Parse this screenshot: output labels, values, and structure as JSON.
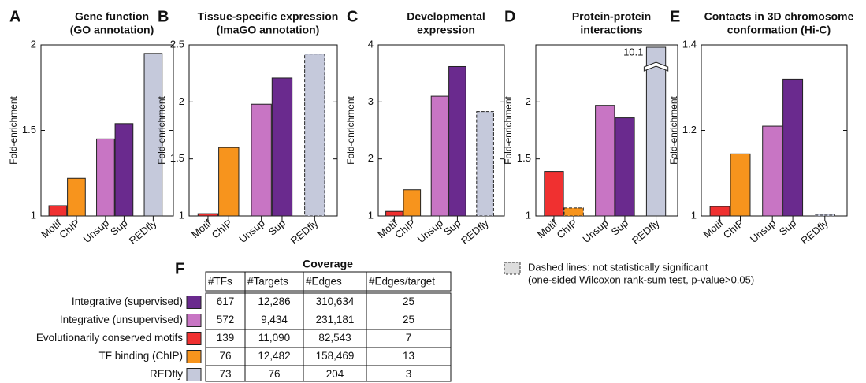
{
  "chart_data": [
    {
      "type": "bar",
      "panel": "A",
      "title": [
        "Gene function",
        "(GO annotation)"
      ],
      "ylabel": "Fold-enrichment",
      "categories": [
        "Motif",
        "ChIP",
        "Unsup",
        "Sup",
        "REDfly"
      ],
      "values": [
        1.06,
        1.22,
        1.45,
        1.54,
        1.95
      ],
      "colors": [
        "#f03030",
        "#f7941d",
        "#c875c4",
        "#6a2a8e",
        "#c5c9db"
      ],
      "dashed": [
        false,
        false,
        false,
        false,
        false
      ],
      "ylim": [
        1,
        2
      ],
      "yticks": [
        1,
        1.5,
        2
      ]
    },
    {
      "type": "bar",
      "panel": "B",
      "title": [
        "Tissue-specific expression",
        "(ImaGO annotation)"
      ],
      "ylabel": "Fold-enrichment",
      "categories": [
        "Motif",
        "ChIP",
        "Unsup",
        "Sup",
        "REDfly"
      ],
      "values": [
        1.02,
        1.6,
        1.98,
        2.21,
        2.42
      ],
      "colors": [
        "#f03030",
        "#f7941d",
        "#c875c4",
        "#6a2a8e",
        "#c5c9db"
      ],
      "dashed": [
        false,
        false,
        false,
        false,
        true
      ],
      "ylim": [
        1,
        2.5
      ],
      "yticks": [
        1,
        1.5,
        2,
        2.5
      ]
    },
    {
      "type": "bar",
      "panel": "C",
      "title": [
        "Developmental",
        "expression"
      ],
      "ylabel": "Fold-enrichment",
      "categories": [
        "Motif",
        "ChIP",
        "Unsup",
        "Sup",
        "REDfly"
      ],
      "values": [
        1.08,
        1.46,
        3.1,
        3.62,
        2.83
      ],
      "colors": [
        "#f03030",
        "#f7941d",
        "#c875c4",
        "#6a2a8e",
        "#c5c9db"
      ],
      "dashed": [
        false,
        false,
        false,
        false,
        true
      ],
      "ylim": [
        1,
        4
      ],
      "yticks": [
        1,
        2,
        3,
        4
      ]
    },
    {
      "type": "bar",
      "panel": "D",
      "title": [
        "Protein-protein",
        "interactions"
      ],
      "ylabel": "Fold-enrichment",
      "categories": [
        "Motif",
        "ChIP",
        "Unsup",
        "Sup",
        "REDfly"
      ],
      "values": [
        1.39,
        1.07,
        1.97,
        1.86,
        10.1
      ],
      "value_labels": [
        null,
        null,
        null,
        null,
        "10.1"
      ],
      "colors": [
        "#f03030",
        "#f7941d",
        "#c875c4",
        "#6a2a8e",
        "#c5c9db"
      ],
      "dashed": [
        false,
        true,
        false,
        false,
        false
      ],
      "ylim": [
        1,
        2.5
      ],
      "yticks": [
        1,
        1.5,
        2
      ]
    },
    {
      "type": "bar",
      "panel": "E",
      "title": [
        "Contacts in 3D chromosome",
        "conformation (Hi-C)"
      ],
      "ylabel": "Fold-enrichment",
      "categories": [
        "Motif",
        "ChIP",
        "Unsup",
        "Sup",
        "REDfly"
      ],
      "values": [
        1.022,
        1.145,
        1.21,
        1.32,
        1.0
      ],
      "colors": [
        "#f03030",
        "#f7941d",
        "#c875c4",
        "#6a2a8e",
        "#c5c9db"
      ],
      "dashed": [
        false,
        false,
        false,
        false,
        true
      ],
      "ylim": [
        1,
        1.4
      ],
      "yticks": [
        1,
        1.2,
        1.4
      ]
    }
  ],
  "note": [
    "Dashed lines: not statistically significant",
    "(one-sided Wilcoxon rank-sum test, p-value>0.05)"
  ],
  "table": {
    "panel": "F",
    "title": "Coverage",
    "header": [
      "#TFs",
      "#Targets",
      "#Edges",
      "#Edges/target"
    ],
    "rows": [
      {
        "label": "Integrative (supervised)",
        "color": "#6a2a8e",
        "cells": [
          "617",
          "12,286",
          "310,634",
          "25"
        ]
      },
      {
        "label": "Integrative (unsupervised)",
        "color": "#c875c4",
        "cells": [
          "572",
          "9,434",
          "231,181",
          "25"
        ]
      },
      {
        "label": "Evolutionarily conserved motifs",
        "color": "#f03030",
        "cells": [
          "139",
          "11,090",
          "82,543",
          "7"
        ]
      },
      {
        "label": "TF binding (ChIP)",
        "color": "#f7941d",
        "cells": [
          "76",
          "12,482",
          "158,469",
          "13"
        ]
      },
      {
        "label": "REDfly",
        "color": "#c5c9db",
        "cells": [
          "73",
          "76",
          "204",
          "3"
        ]
      }
    ]
  }
}
